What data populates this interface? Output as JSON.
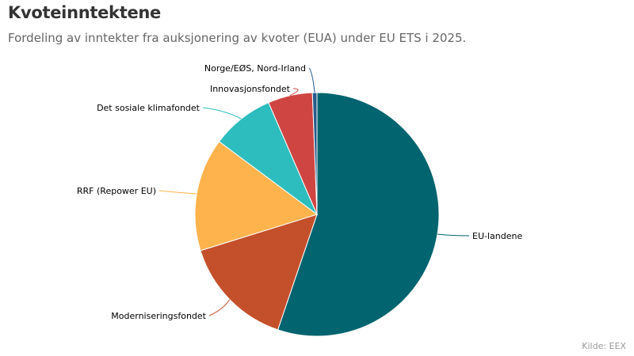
{
  "header": {
    "title": "Kvoteinntektene",
    "subtitle": "Fordeling av inntekter fra auksjonering av kvoter (EUA) under EU ETS i 2025."
  },
  "footer": {
    "source": "Kilde: EEX"
  },
  "chart_data": {
    "type": "pie",
    "start_angle_deg": 0,
    "direction": "clockwise",
    "labels_position": "outside",
    "slices": [
      {
        "name": "EU-landene",
        "value": 55.2,
        "color": "#02646e"
      },
      {
        "name": "Moderniseringsfondet",
        "value": 15.0,
        "color": "#c4502b"
      },
      {
        "name": "RRF (Repower EU)",
        "value": 15.0,
        "color": "#feb34d"
      },
      {
        "name": "Det sosiale klimafondet",
        "value": 8.3,
        "color": "#2ebdbe"
      },
      {
        "name": "Innovasjonsfondet",
        "value": 5.9,
        "color": "#cf4541"
      },
      {
        "name": "Norge/EØS, Nord-Irland",
        "value": 0.6,
        "color": "#265b8c"
      }
    ]
  }
}
